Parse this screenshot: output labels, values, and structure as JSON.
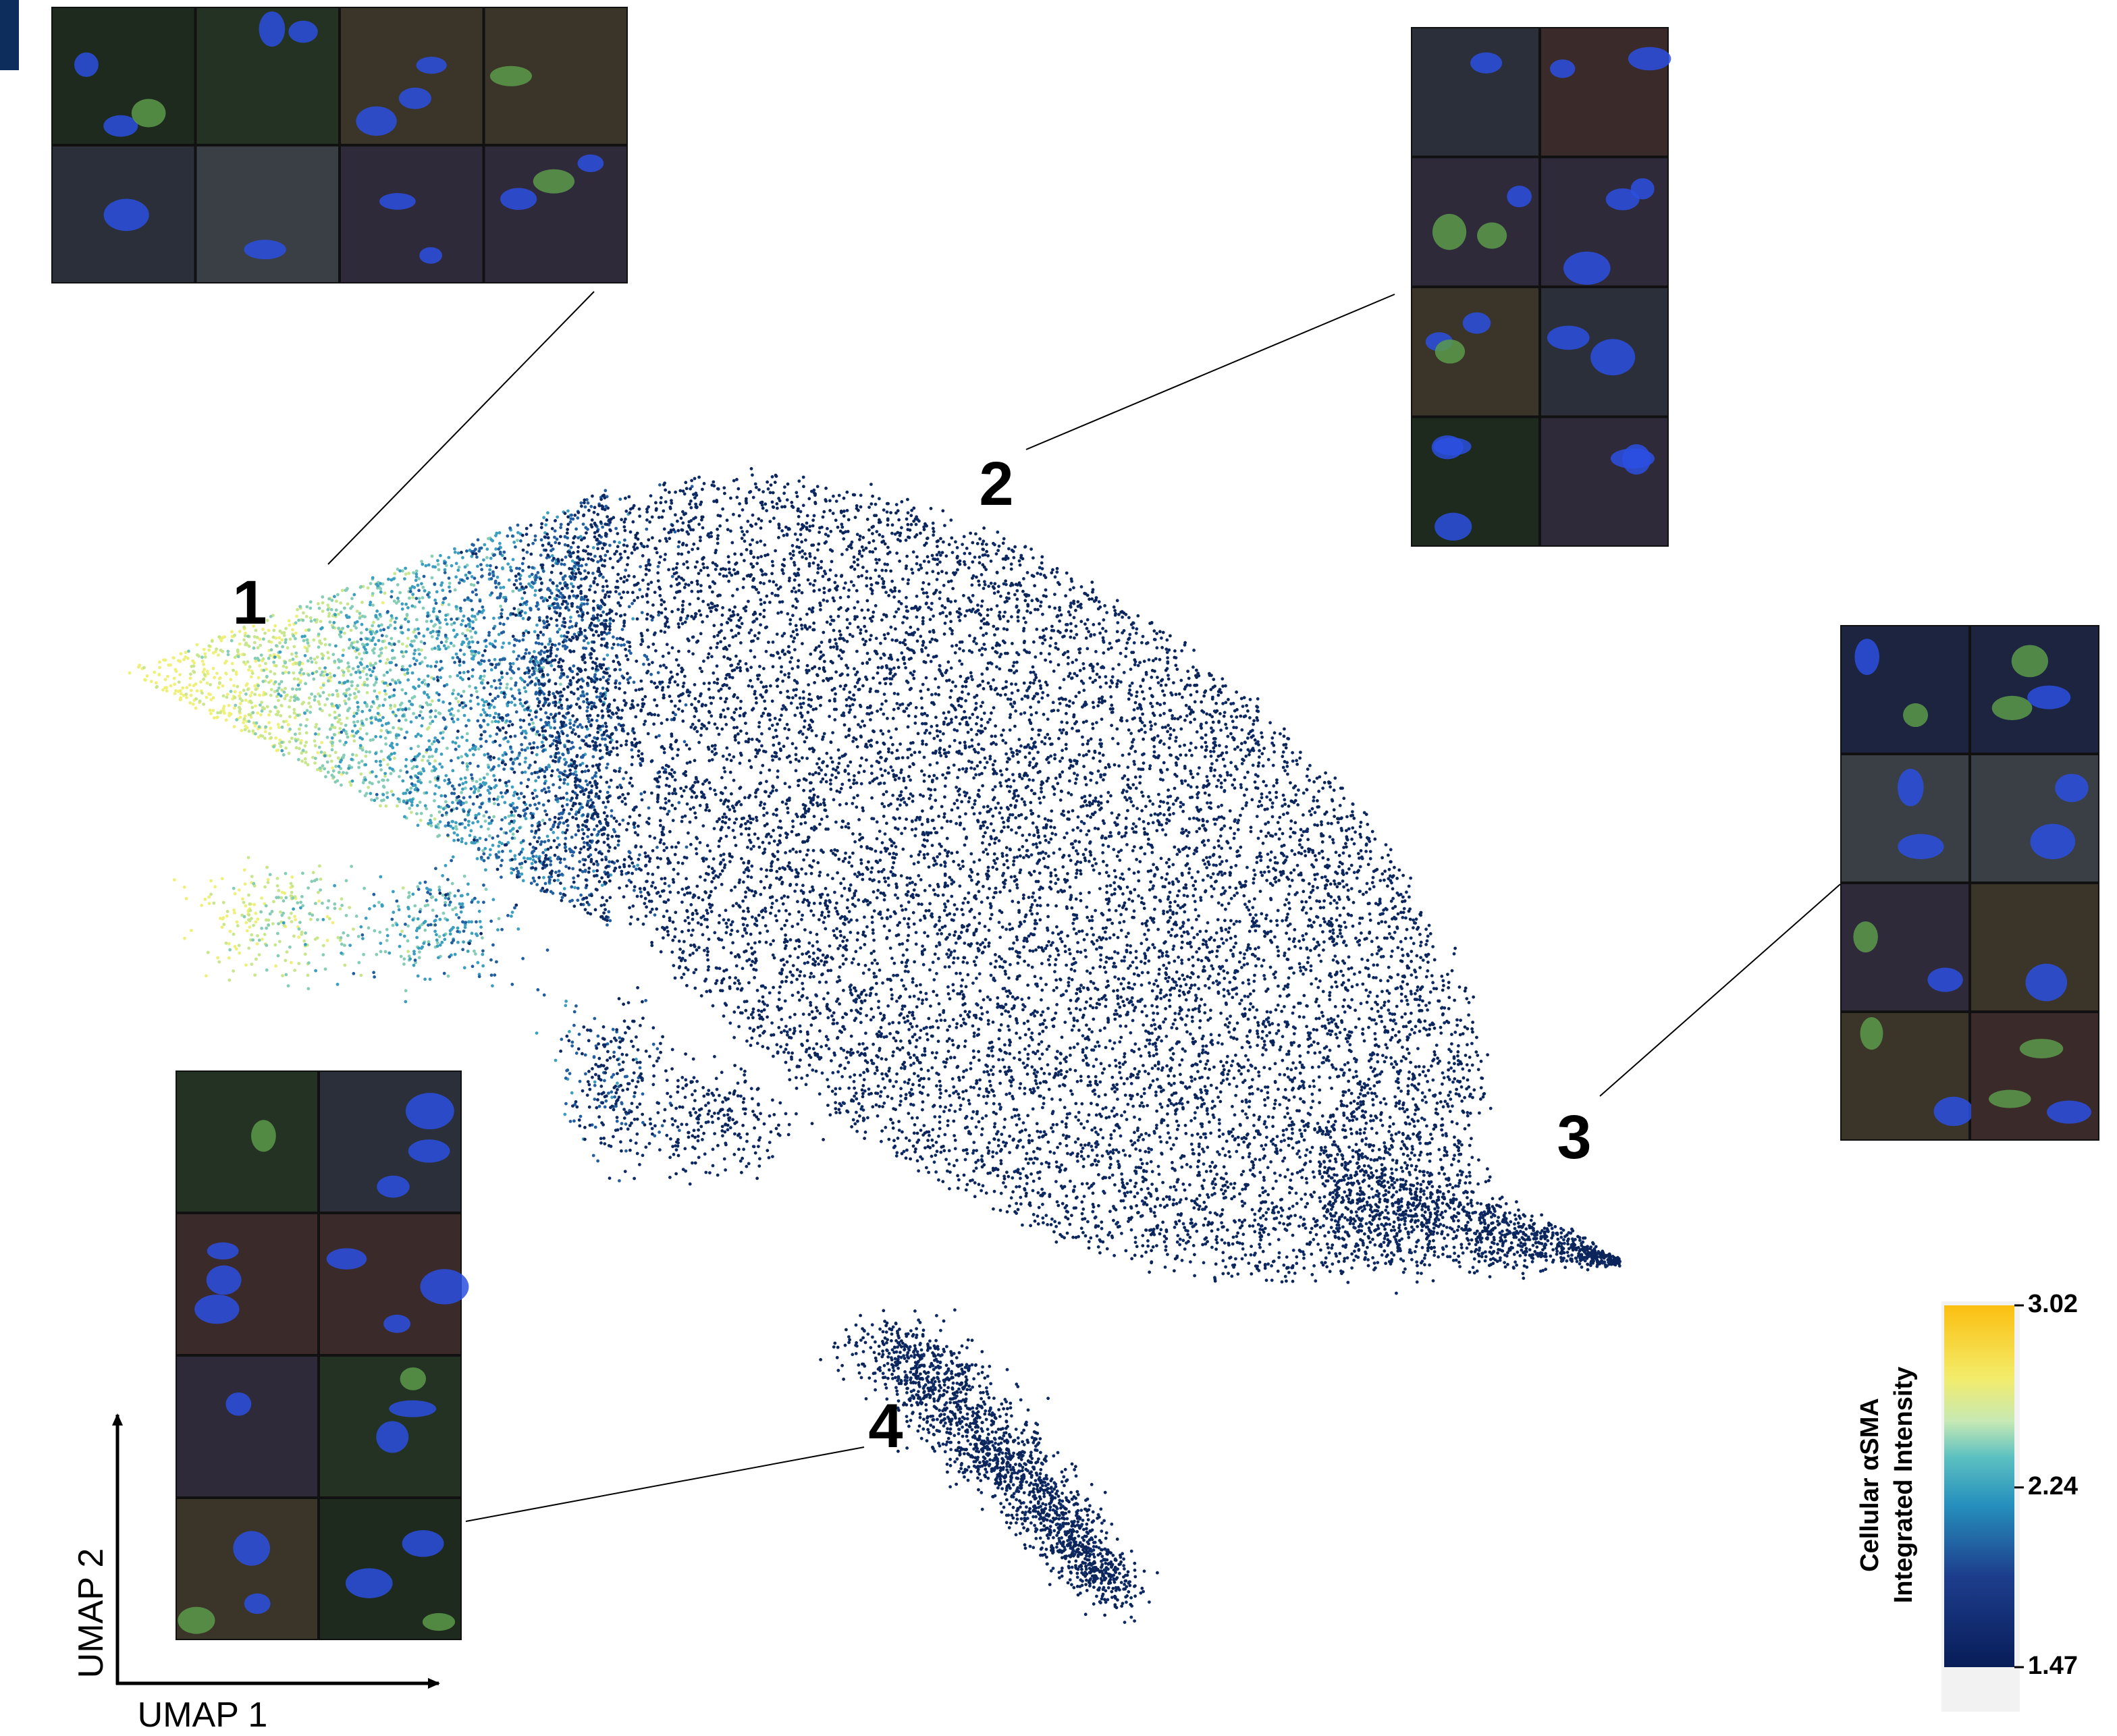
{
  "labels": [
    "1",
    "2",
    "3",
    "4"
  ],
  "axes": {
    "x": "UMAP 1",
    "y": "UMAP 2"
  },
  "colorbar": {
    "title": [
      "Cellular αSMA",
      "Integrated Intensity"
    ],
    "lim": [
      1.47,
      3.02
    ],
    "ticks": [
      1.47,
      2.24,
      3.02
    ]
  }
}
